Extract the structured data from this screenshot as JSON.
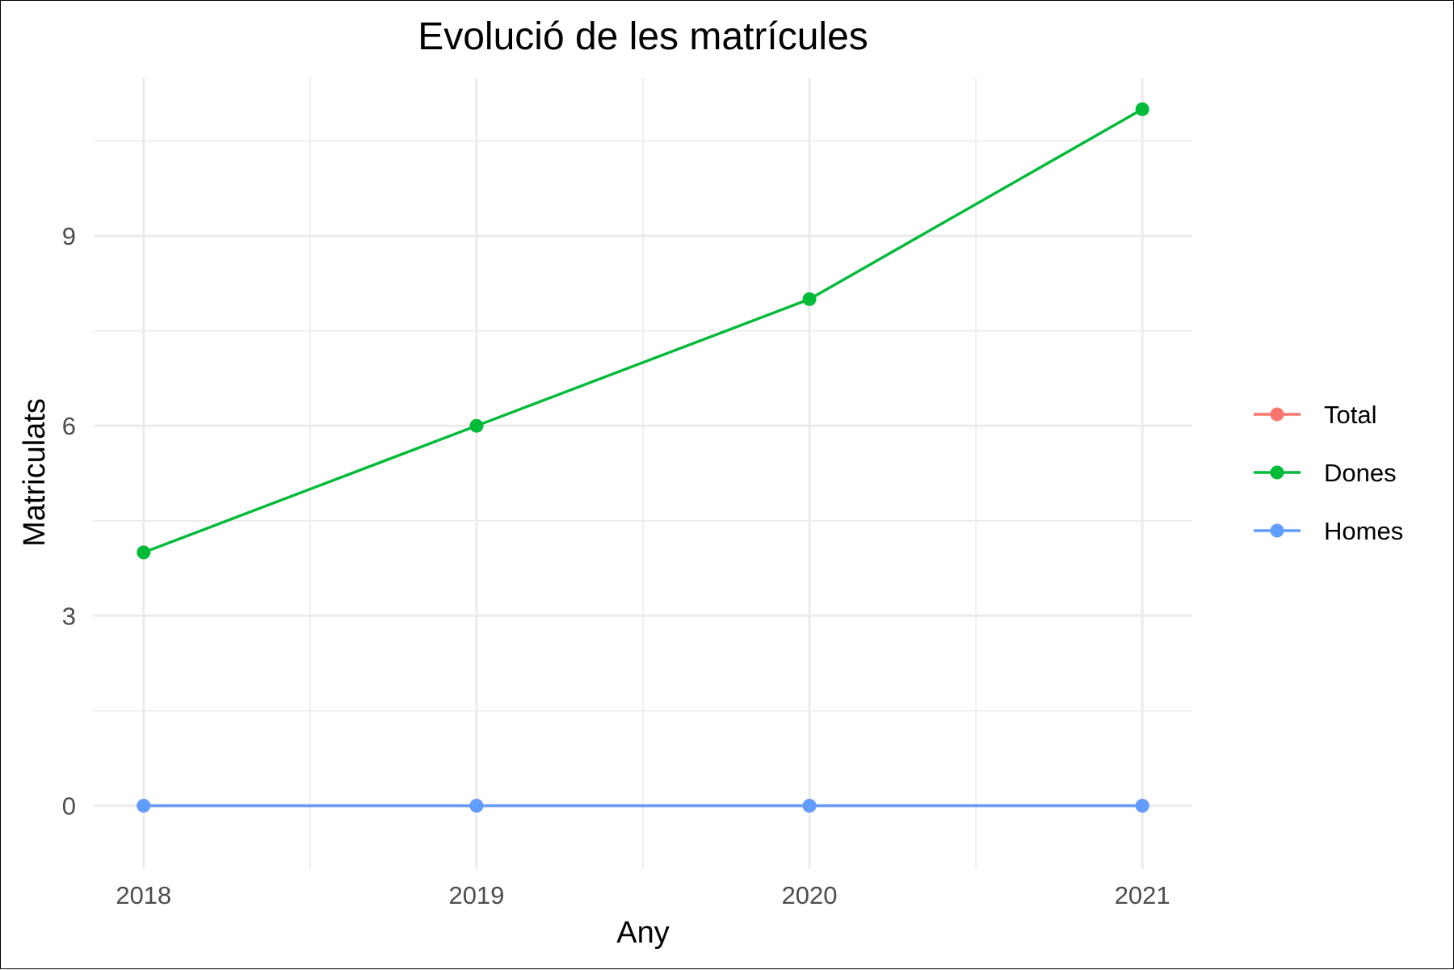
{
  "chart_data": {
    "type": "line",
    "title": "Evolució de les matrícules",
    "xlabel": "Any",
    "ylabel": "Matriculats",
    "x": [
      2018,
      2019,
      2020,
      2021
    ],
    "x_ticks": [
      "2018",
      "2019",
      "2020",
      "2021"
    ],
    "y_ticks": [
      "0",
      "3",
      "6",
      "9"
    ],
    "xlim": [
      2017.85,
      2021.15
    ],
    "ylim": [
      -1,
      11.5
    ],
    "grid": true,
    "legend_position": "right",
    "series": [
      {
        "name": "Total",
        "color": "#F8766D",
        "values": [
          0,
          0,
          0,
          0
        ]
      },
      {
        "name": "Dones",
        "color": "#00BA38",
        "values": [
          4,
          6,
          8,
          11
        ]
      },
      {
        "name": "Homes",
        "color": "#619CFF",
        "values": [
          0,
          0,
          0,
          0
        ]
      }
    ]
  }
}
